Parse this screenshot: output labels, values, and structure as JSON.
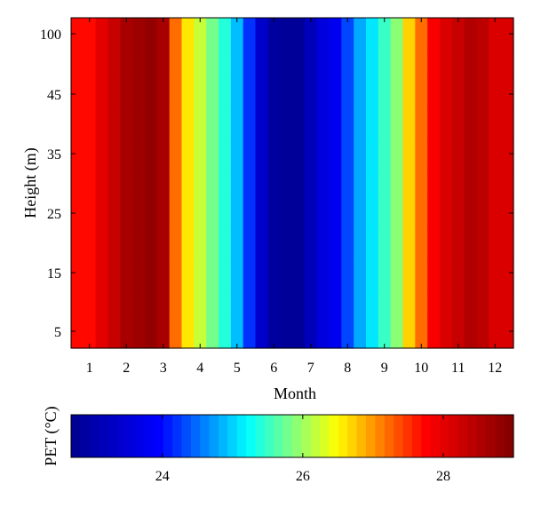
{
  "chart_data": {
    "type": "heatmap",
    "title": "",
    "xlabel": "Month",
    "ylabel": "Height (m)",
    "x": [
      "1",
      "2",
      "3",
      "4",
      "5",
      "6",
      "7",
      "8",
      "9",
      "10",
      "11",
      "12"
    ],
    "y_ticks": [
      "5",
      "15",
      "25",
      "35",
      "45",
      "100"
    ],
    "xlim": [
      0.5,
      12.5
    ],
    "color_scale": {
      "label": "PET (°C)",
      "range": [
        22.7,
        29.0
      ],
      "ticks": [
        "24",
        "26",
        "28"
      ],
      "tick_values": [
        24,
        26,
        28
      ],
      "colormap": "jet",
      "colors": [
        "#00008f",
        "#0000ff",
        "#00ffff",
        "#ffff00",
        "#ff0000",
        "#800000"
      ]
    },
    "column_pet_values": [
      27.7,
      27.7,
      28.0,
      28.3,
      28.6,
      28.7,
      28.8,
      28.6,
      27.2,
      26.6,
      26.2,
      25.8,
      25.4,
      24.9,
      24.2,
      23.4,
      22.9,
      22.8,
      22.8,
      23.2,
      23.6,
      23.8,
      24.3,
      24.8,
      25.1,
      25.5,
      25.9,
      26.7,
      27.2,
      27.8,
      28.1,
      28.3,
      28.5,
      28.4,
      28.1,
      28.1
    ],
    "colorbar_segments": 48
  }
}
